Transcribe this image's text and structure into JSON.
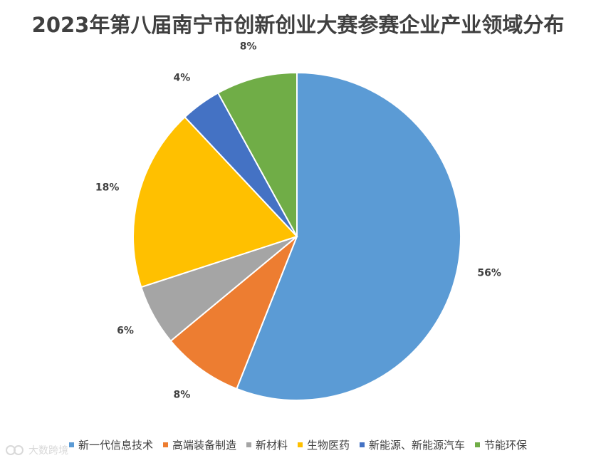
{
  "chart_data": {
    "type": "pie",
    "title": "2023年第八届南宁市创新创业大赛参赛企业产业领域分布",
    "legend_position": "bottom",
    "slices": [
      {
        "label": "新一代信息技术",
        "value": 56,
        "display": "56%",
        "color": "#5B9BD5"
      },
      {
        "label": "高端装备制造",
        "value": 8,
        "display": "8%",
        "color": "#ED7D31"
      },
      {
        "label": "新材料",
        "value": 6,
        "display": "6%",
        "color": "#A5A5A5"
      },
      {
        "label": "生物医药",
        "value": 18,
        "display": "18%",
        "color": "#FFC000"
      },
      {
        "label": "新能源、新能源汽车",
        "value": 4,
        "display": "4%",
        "color": "#4472C4"
      },
      {
        "label": "节能环保",
        "value": 8,
        "display": "8%",
        "color": "#70AD47"
      }
    ]
  },
  "watermark": {
    "text": "大数跨境"
  }
}
